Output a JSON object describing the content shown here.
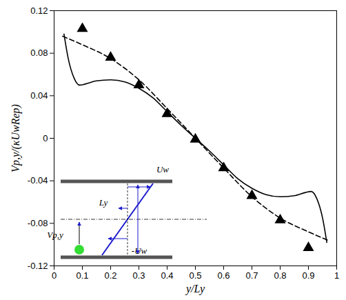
{
  "chart_data": {
    "type": "line",
    "x_label": "y/Ly",
    "y_label": "Vp,y/(κUwRep)",
    "xlim": [
      0,
      1
    ],
    "xticks": [
      0,
      0.1,
      0.2,
      0.3,
      0.4,
      0.5,
      0.6,
      0.7,
      0.8,
      0.9,
      1
    ],
    "ylim": [
      -0.12,
      0.12
    ],
    "yticks": [
      -0.12,
      -0.08,
      -0.04,
      0,
      0.04,
      0.08,
      0.12
    ],
    "grid": false,
    "series": [
      {
        "type": "line",
        "color": "#000000",
        "line_style": "solid",
        "x": [
          0.035,
          0.05,
          0.07,
          0.09,
          0.11,
          0.15,
          0.2,
          0.25,
          0.3,
          0.35,
          0.4,
          0.45,
          0.5,
          0.55,
          0.6,
          0.65,
          0.7,
          0.75,
          0.8,
          0.85,
          0.89,
          0.91,
          0.93,
          0.95,
          0.965
        ],
        "values": [
          0.098,
          0.075,
          0.057,
          0.05,
          0.051,
          0.054,
          0.055,
          0.053,
          0.047,
          0.038,
          0.025,
          0.012,
          0,
          -0.012,
          -0.025,
          -0.038,
          -0.047,
          -0.053,
          -0.055,
          -0.054,
          -0.051,
          -0.05,
          -0.057,
          -0.075,
          -0.098
        ]
      },
      {
        "type": "line",
        "color": "#000000",
        "line_style": "dashed",
        "x": [
          0.03,
          0.1,
          0.2,
          0.3,
          0.4,
          0.5,
          0.6,
          0.7,
          0.8,
          0.9,
          0.97
        ],
        "values": [
          0.096,
          0.088,
          0.075,
          0.055,
          0.028,
          0,
          -0.028,
          -0.055,
          -0.075,
          -0.088,
          -0.096
        ]
      },
      {
        "type": "scatter",
        "color": "#000000",
        "marker": "triangle",
        "x": [
          0.1,
          0.2,
          0.3,
          0.4,
          0.5,
          0.6,
          0.7,
          0.8,
          0.9
        ],
        "values": [
          0.103,
          0.076,
          0.05,
          0.023,
          -0.001,
          -0.028,
          -0.054,
          -0.077,
          -0.103
        ]
      }
    ],
    "annotations": [
      "Uw",
      "Ly",
      "Vp,y",
      "-Uw"
    ]
  }
}
